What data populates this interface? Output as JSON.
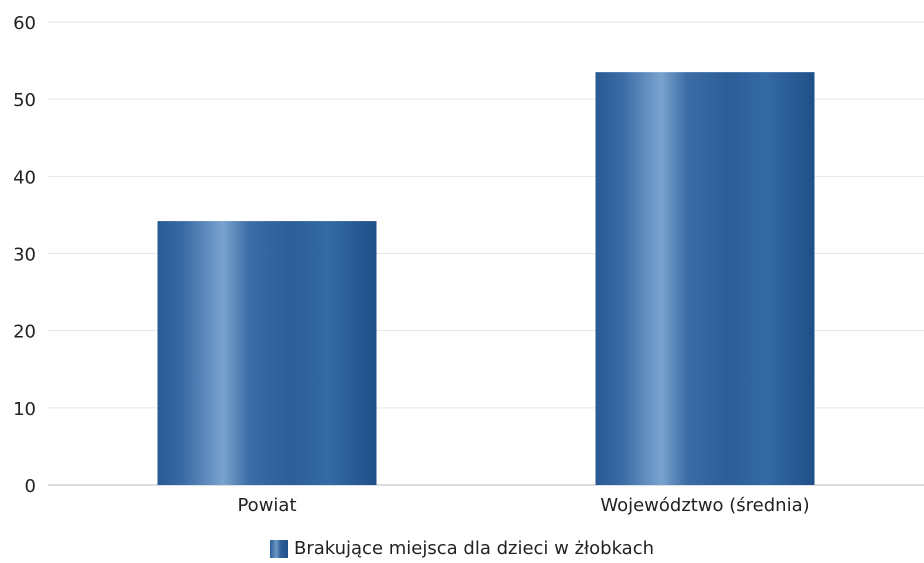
{
  "chart_data": {
    "type": "bar",
    "categories": [
      "Powiat",
      "Województwo (średnia)"
    ],
    "series": [
      {
        "name": "Brakujące miejsca dla dzieci w żłobkach",
        "values": [
          34.2,
          53.5
        ]
      }
    ],
    "ylim": [
      0,
      60
    ],
    "yticks": [
      0,
      10,
      20,
      30,
      40,
      50,
      60
    ],
    "grid": true,
    "legend_position": "bottom",
    "colors": {
      "bar": "#2c5e98",
      "grid": "#e6e6e6"
    }
  }
}
